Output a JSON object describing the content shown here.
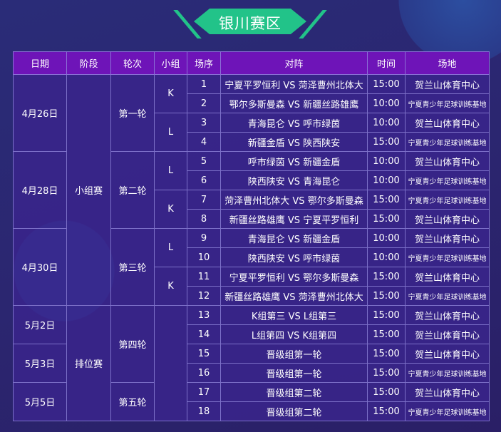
{
  "title": "银川赛区",
  "headers": [
    "日期",
    "阶段",
    "轮次",
    "小组",
    "场序",
    "对阵",
    "时间",
    "场地"
  ],
  "dates": [
    "4月26日",
    "4月28日",
    "4月30日",
    "5月2日",
    "5月3日",
    "5月5日"
  ],
  "stages": [
    "小组赛",
    "排位赛"
  ],
  "rounds": [
    "第一轮",
    "第二轮",
    "第三轮",
    "第四轮",
    "第五轮"
  ],
  "groups": [
    "K",
    "L",
    "L",
    "K",
    "L",
    "K",
    ""
  ],
  "matches": [
    {
      "no": "1",
      "match": "宁夏平罗恒利 VS 菏泽曹州北体大",
      "time": "15:00",
      "venue": "贺兰山体育中心"
    },
    {
      "no": "2",
      "match": "鄂尔多斯曼森 VS 新疆丝路雄鹰",
      "time": "10:00",
      "venue": "宁夏青少年足球训练基地"
    },
    {
      "no": "3",
      "match": "青海昆仑 VS 呼市绿茵",
      "time": "10:00",
      "venue": "贺兰山体育中心"
    },
    {
      "no": "4",
      "match": "新疆金盾 VS 陕西陕安",
      "time": "15:00",
      "venue": "宁夏青少年足球训练基地"
    },
    {
      "no": "5",
      "match": "呼市绿茵 VS 新疆金盾",
      "time": "10:00",
      "venue": "贺兰山体育中心"
    },
    {
      "no": "6",
      "match": "陕西陕安 VS 青海昆仑",
      "time": "10:00",
      "venue": "宁夏青少年足球训练基地"
    },
    {
      "no": "7",
      "match": "菏泽曹州北体大 VS 鄂尔多斯曼森",
      "time": "15:00",
      "venue": "宁夏青少年足球训练基地"
    },
    {
      "no": "8",
      "match": "新疆丝路雄鹰 VS 宁夏平罗恒利",
      "time": "15:00",
      "venue": "贺兰山体育中心"
    },
    {
      "no": "9",
      "match": "青海昆仑 VS 新疆金盾",
      "time": "10:00",
      "venue": "贺兰山体育中心"
    },
    {
      "no": "10",
      "match": "陕西陕安 VS 呼市绿茵",
      "time": "10:00",
      "venue": "宁夏青少年足球训练基地"
    },
    {
      "no": "11",
      "match": "宁夏平罗恒利 VS 鄂尔多斯曼森",
      "time": "15:00",
      "venue": "贺兰山体育中心"
    },
    {
      "no": "12",
      "match": "新疆丝路雄鹰 VS 菏泽曹州北体大",
      "time": "15:00",
      "venue": "宁夏青少年足球训练基地"
    },
    {
      "no": "13",
      "match": "K组第三 VS L组第三",
      "time": "15:00",
      "venue": "贺兰山体育中心"
    },
    {
      "no": "14",
      "match": "L组第四 VS K组第四",
      "time": "15:00",
      "venue": "贺兰山体育中心"
    },
    {
      "no": "15",
      "match": "晋级组第一轮",
      "time": "15:00",
      "venue": "贺兰山体育中心"
    },
    {
      "no": "16",
      "match": "晋级组第一轮",
      "time": "15:00",
      "venue": "宁夏青少年足球训练基地"
    },
    {
      "no": "17",
      "match": "晋级组第二轮",
      "time": "15:00",
      "venue": "贺兰山体育中心"
    },
    {
      "no": "18",
      "match": "晋级组第二轮",
      "time": "15:00",
      "venue": "宁夏青少年足球训练基地"
    }
  ]
}
